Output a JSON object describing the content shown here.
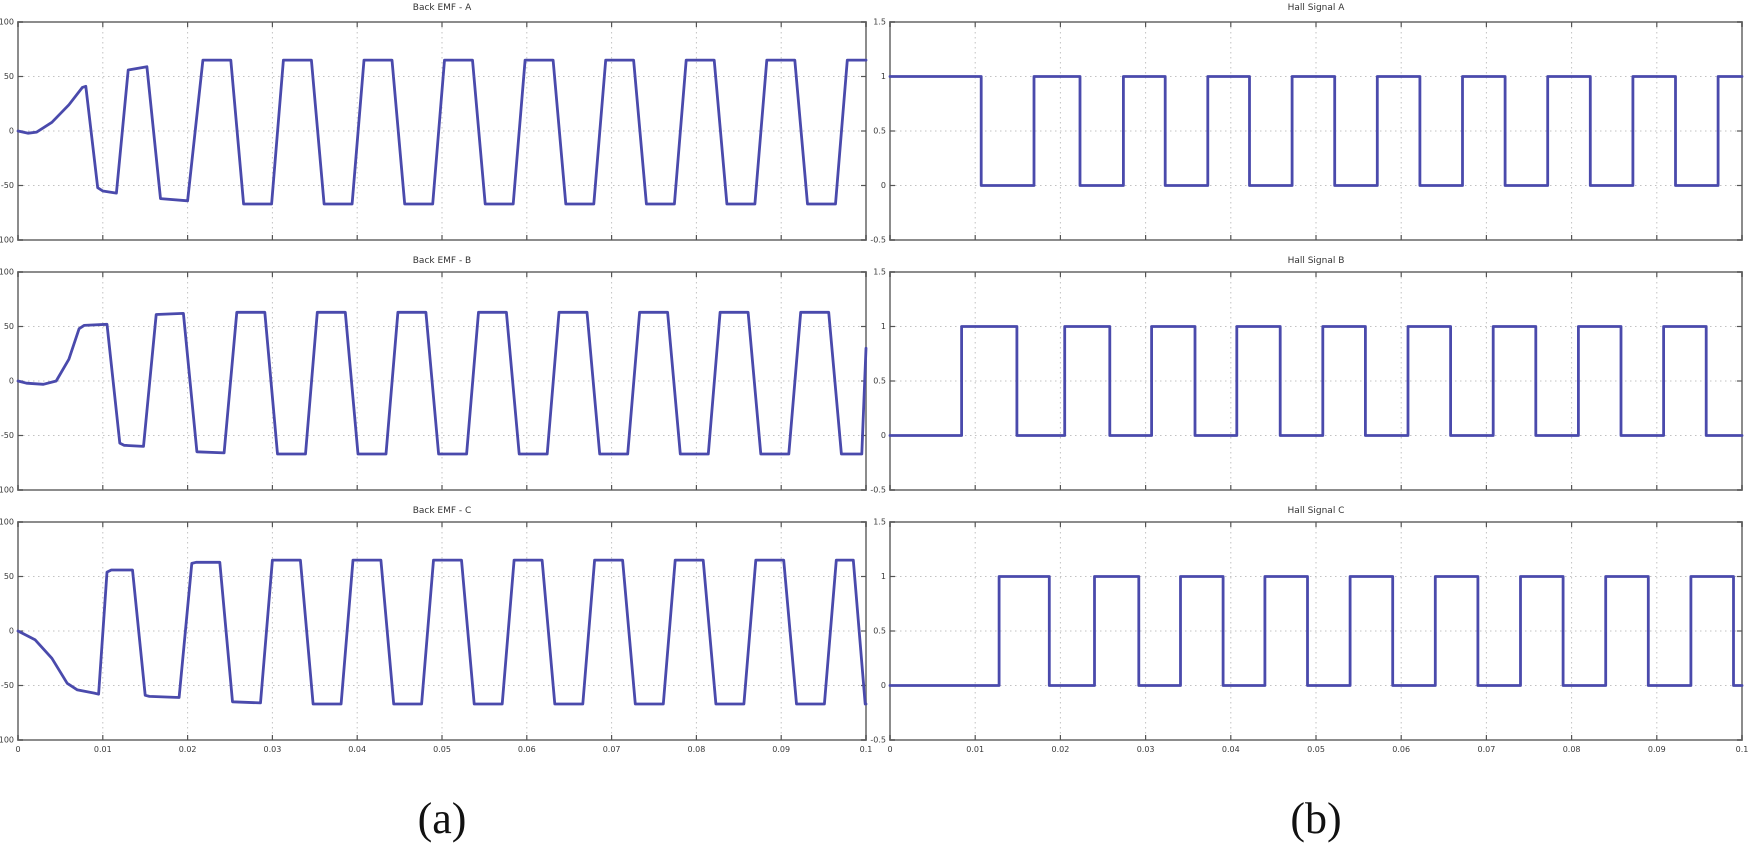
{
  "figure": {
    "panel_a_label": "(a)",
    "panel_b_label": "(b)",
    "line_color": "#4a4aac",
    "axis_color": "#8c8c8c",
    "grid_color": "#c2c2c2",
    "tick_color": "#555555",
    "label_color": "#3a3a3a",
    "background": "#ffffff"
  },
  "chart_data": [
    {
      "id": "back-emf-a",
      "type": "line",
      "title": "Back EMF - A",
      "xlim": [
        0,
        0.1
      ],
      "ylim": [
        -100,
        100
      ],
      "grid": true,
      "xticks": [
        0,
        0.01,
        0.02,
        0.03,
        0.04,
        0.05,
        0.06,
        0.07,
        0.08,
        0.09,
        0.1
      ],
      "yticks": [
        100,
        50,
        0,
        -50,
        -100
      ],
      "ytick_labels": [
        "100",
        "50",
        "0",
        "-50",
        "-100"
      ],
      "points": [
        [
          0,
          0
        ],
        [
          0.0012,
          -2
        ],
        [
          0.0022,
          -1
        ],
        [
          0.004,
          8
        ],
        [
          0.006,
          24
        ],
        [
          0.0076,
          40
        ],
        [
          0.008,
          41
        ],
        [
          0.0094,
          -52
        ],
        [
          0.01,
          -55
        ],
        [
          0.0116,
          -57
        ],
        [
          0.013,
          56
        ],
        [
          0.0152,
          59
        ],
        [
          0.0168,
          -62
        ],
        [
          0.02,
          -64
        ],
        [
          0.0218,
          65
        ],
        [
          0.0251,
          65
        ],
        [
          0.0266,
          -67
        ],
        [
          0.0299,
          -67
        ],
        [
          0.0313,
          65
        ],
        [
          0.0346,
          65
        ],
        [
          0.0361,
          -67
        ],
        [
          0.0394,
          -67
        ],
        [
          0.0408,
          65
        ],
        [
          0.0441,
          65
        ],
        [
          0.0456,
          -67
        ],
        [
          0.0489,
          -67
        ],
        [
          0.0503,
          65
        ],
        [
          0.0536,
          65
        ],
        [
          0.0551,
          -67
        ],
        [
          0.0584,
          -67
        ],
        [
          0.0598,
          65
        ],
        [
          0.0631,
          65
        ],
        [
          0.0646,
          -67
        ],
        [
          0.0679,
          -67
        ],
        [
          0.0693,
          65
        ],
        [
          0.0726,
          65
        ],
        [
          0.0741,
          -67
        ],
        [
          0.0774,
          -67
        ],
        [
          0.0788,
          65
        ],
        [
          0.0821,
          65
        ],
        [
          0.0836,
          -67
        ],
        [
          0.0869,
          -67
        ],
        [
          0.0883,
          65
        ],
        [
          0.0916,
          65
        ],
        [
          0.0931,
          -67
        ],
        [
          0.0964,
          -67
        ],
        [
          0.0978,
          65
        ],
        [
          0.1,
          65
        ]
      ]
    },
    {
      "id": "back-emf-b",
      "type": "line",
      "title": "Back EMF - B",
      "xlim": [
        0,
        0.1
      ],
      "ylim": [
        -100,
        100
      ],
      "grid": true,
      "xticks": [
        0,
        0.01,
        0.02,
        0.03,
        0.04,
        0.05,
        0.06,
        0.07,
        0.08,
        0.09,
        0.1
      ],
      "yticks": [
        100,
        50,
        0,
        -50,
        -100
      ],
      "ytick_labels": [
        "100",
        "50",
        "0",
        "-50",
        "-100"
      ],
      "points": [
        [
          0,
          0
        ],
        [
          0.001,
          -2
        ],
        [
          0.003,
          -3
        ],
        [
          0.0045,
          0
        ],
        [
          0.006,
          20
        ],
        [
          0.0072,
          48
        ],
        [
          0.0078,
          51
        ],
        [
          0.0105,
          52
        ],
        [
          0.012,
          -57
        ],
        [
          0.0125,
          -59
        ],
        [
          0.0148,
          -60
        ],
        [
          0.0163,
          61
        ],
        [
          0.0195,
          62
        ],
        [
          0.0211,
          -65
        ],
        [
          0.0243,
          -66
        ],
        [
          0.0258,
          63
        ],
        [
          0.0291,
          63
        ],
        [
          0.0306,
          -67
        ],
        [
          0.0339,
          -67
        ],
        [
          0.0353,
          63
        ],
        [
          0.0386,
          63
        ],
        [
          0.0401,
          -67
        ],
        [
          0.0434,
          -67
        ],
        [
          0.0448,
          63
        ],
        [
          0.0481,
          63
        ],
        [
          0.0496,
          -67
        ],
        [
          0.0529,
          -67
        ],
        [
          0.0543,
          63
        ],
        [
          0.0576,
          63
        ],
        [
          0.0591,
          -67
        ],
        [
          0.0624,
          -67
        ],
        [
          0.0638,
          63
        ],
        [
          0.0671,
          63
        ],
        [
          0.0686,
          -67
        ],
        [
          0.0719,
          -67
        ],
        [
          0.0733,
          63
        ],
        [
          0.0766,
          63
        ],
        [
          0.0781,
          -67
        ],
        [
          0.0814,
          -67
        ],
        [
          0.0828,
          63
        ],
        [
          0.0861,
          63
        ],
        [
          0.0876,
          -67
        ],
        [
          0.0909,
          -67
        ],
        [
          0.0923,
          63
        ],
        [
          0.0956,
          63
        ],
        [
          0.0971,
          -67
        ],
        [
          0.0995,
          -67
        ],
        [
          0.1,
          30
        ]
      ]
    },
    {
      "id": "back-emf-c",
      "type": "line",
      "title": "Back EMF - C",
      "xlim": [
        0,
        0.1
      ],
      "ylim": [
        -100,
        100
      ],
      "grid": true,
      "xticks": [
        0,
        0.01,
        0.02,
        0.03,
        0.04,
        0.05,
        0.06,
        0.07,
        0.08,
        0.09,
        0.1
      ],
      "yticks": [
        100,
        50,
        0,
        -50,
        -100
      ],
      "ytick_labels": [
        "100",
        "50",
        "0",
        "-50",
        "-100"
      ],
      "xtick_labels": [
        "0",
        "0.01",
        "0.02",
        "0.03",
        "0.04",
        "0.05",
        "0.06",
        "0.07",
        "0.08",
        "0.09",
        "0.1"
      ],
      "points": [
        [
          0,
          0
        ],
        [
          0.002,
          -8
        ],
        [
          0.004,
          -25
        ],
        [
          0.0058,
          -48
        ],
        [
          0.007,
          -54
        ],
        [
          0.009,
          -57
        ],
        [
          0.0095,
          -58
        ],
        [
          0.0105,
          54
        ],
        [
          0.011,
          56
        ],
        [
          0.0135,
          56
        ],
        [
          0.015,
          -59
        ],
        [
          0.0155,
          -60
        ],
        [
          0.019,
          -61
        ],
        [
          0.0205,
          62
        ],
        [
          0.021,
          63
        ],
        [
          0.0238,
          63
        ],
        [
          0.0253,
          -65
        ],
        [
          0.0286,
          -66
        ],
        [
          0.03,
          65
        ],
        [
          0.0333,
          65
        ],
        [
          0.0348,
          -67
        ],
        [
          0.0381,
          -67
        ],
        [
          0.0395,
          65
        ],
        [
          0.0428,
          65
        ],
        [
          0.0443,
          -67
        ],
        [
          0.0476,
          -67
        ],
        [
          0.049,
          65
        ],
        [
          0.0523,
          65
        ],
        [
          0.0538,
          -67
        ],
        [
          0.0571,
          -67
        ],
        [
          0.0585,
          65
        ],
        [
          0.0618,
          65
        ],
        [
          0.0633,
          -67
        ],
        [
          0.0666,
          -67
        ],
        [
          0.068,
          65
        ],
        [
          0.0713,
          65
        ],
        [
          0.0728,
          -67
        ],
        [
          0.0761,
          -67
        ],
        [
          0.0775,
          65
        ],
        [
          0.0808,
          65
        ],
        [
          0.0823,
          -67
        ],
        [
          0.0856,
          -67
        ],
        [
          0.087,
          65
        ],
        [
          0.0903,
          65
        ],
        [
          0.0918,
          -67
        ],
        [
          0.0951,
          -67
        ],
        [
          0.0965,
          65
        ],
        [
          0.0985,
          65
        ],
        [
          0.0999,
          -67
        ],
        [
          0.1,
          -67
        ]
      ]
    },
    {
      "id": "hall-signal-a",
      "type": "line",
      "title": "Hall Signal A",
      "xlim": [
        0,
        0.1
      ],
      "ylim": [
        -0.5,
        1.5
      ],
      "grid": true,
      "xticks": [
        0,
        0.01,
        0.02,
        0.03,
        0.04,
        0.05,
        0.06,
        0.07,
        0.08,
        0.09,
        0.1
      ],
      "yticks": [
        1.5,
        1,
        0.5,
        0,
        -0.5
      ],
      "ytick_labels": [
        "1.5",
        "1",
        "0.5",
        "0",
        "-0.5"
      ],
      "points": [
        [
          0,
          1
        ],
        [
          0.0107,
          1
        ],
        [
          0.0107,
          0
        ],
        [
          0.0169,
          0
        ],
        [
          0.0169,
          1
        ],
        [
          0.0223,
          1
        ],
        [
          0.0223,
          0
        ],
        [
          0.0274,
          0
        ],
        [
          0.0274,
          1
        ],
        [
          0.0323,
          1
        ],
        [
          0.0323,
          0
        ],
        [
          0.0373,
          0
        ],
        [
          0.0373,
          1
        ],
        [
          0.0422,
          1
        ],
        [
          0.0422,
          0
        ],
        [
          0.0472,
          0
        ],
        [
          0.0472,
          1
        ],
        [
          0.0522,
          1
        ],
        [
          0.0522,
          0
        ],
        [
          0.0572,
          0
        ],
        [
          0.0572,
          1
        ],
        [
          0.0622,
          1
        ],
        [
          0.0622,
          0
        ],
        [
          0.0672,
          0
        ],
        [
          0.0672,
          1
        ],
        [
          0.0722,
          1
        ],
        [
          0.0722,
          0
        ],
        [
          0.0772,
          0
        ],
        [
          0.0772,
          1
        ],
        [
          0.0822,
          1
        ],
        [
          0.0822,
          0
        ],
        [
          0.0872,
          0
        ],
        [
          0.0872,
          1
        ],
        [
          0.0922,
          1
        ],
        [
          0.0922,
          0
        ],
        [
          0.0972,
          0
        ],
        [
          0.0972,
          1
        ],
        [
          0.1,
          1
        ]
      ]
    },
    {
      "id": "hall-signal-b",
      "type": "line",
      "title": "Hall Signal B",
      "xlim": [
        0,
        0.1
      ],
      "ylim": [
        -0.5,
        1.5
      ],
      "grid": true,
      "xticks": [
        0,
        0.01,
        0.02,
        0.03,
        0.04,
        0.05,
        0.06,
        0.07,
        0.08,
        0.09,
        0.1
      ],
      "yticks": [
        1.5,
        1,
        0.5,
        0,
        -0.5
      ],
      "ytick_labels": [
        "1.5",
        "1",
        "0.5",
        "0",
        "-0.5"
      ],
      "points": [
        [
          0,
          0
        ],
        [
          0.0084,
          0
        ],
        [
          0.0084,
          1
        ],
        [
          0.0149,
          1
        ],
        [
          0.0149,
          0
        ],
        [
          0.0205,
          0
        ],
        [
          0.0205,
          1
        ],
        [
          0.0258,
          1
        ],
        [
          0.0258,
          0
        ],
        [
          0.0307,
          0
        ],
        [
          0.0307,
          1
        ],
        [
          0.0358,
          1
        ],
        [
          0.0358,
          0
        ],
        [
          0.0407,
          0
        ],
        [
          0.0407,
          1
        ],
        [
          0.0458,
          1
        ],
        [
          0.0458,
          0
        ],
        [
          0.0508,
          0
        ],
        [
          0.0508,
          1
        ],
        [
          0.0558,
          1
        ],
        [
          0.0558,
          0
        ],
        [
          0.0608,
          0
        ],
        [
          0.0608,
          1
        ],
        [
          0.0658,
          1
        ],
        [
          0.0658,
          0
        ],
        [
          0.0708,
          0
        ],
        [
          0.0708,
          1
        ],
        [
          0.0758,
          1
        ],
        [
          0.0758,
          0
        ],
        [
          0.0808,
          0
        ],
        [
          0.0808,
          1
        ],
        [
          0.0858,
          1
        ],
        [
          0.0858,
          0
        ],
        [
          0.0908,
          0
        ],
        [
          0.0908,
          1
        ],
        [
          0.0958,
          1
        ],
        [
          0.0958,
          0
        ],
        [
          0.1,
          0
        ]
      ]
    },
    {
      "id": "hall-signal-c",
      "type": "line",
      "title": "Hall Signal C",
      "xlim": [
        0,
        0.1
      ],
      "ylim": [
        -0.5,
        1.5
      ],
      "grid": true,
      "xticks": [
        0,
        0.01,
        0.02,
        0.03,
        0.04,
        0.05,
        0.06,
        0.07,
        0.08,
        0.09,
        0.1
      ],
      "yticks": [
        1.5,
        1,
        0.5,
        0,
        -0.5
      ],
      "ytick_labels": [
        "1.5",
        "1",
        "0.5",
        "0",
        "-0.5"
      ],
      "xtick_labels": [
        "0",
        "0.01",
        "0.02",
        "0.03",
        "0.04",
        "0.05",
        "0.06",
        "0.07",
        "0.08",
        "0.09",
        "0.1"
      ],
      "points": [
        [
          0,
          0
        ],
        [
          0.0128,
          0
        ],
        [
          0.0128,
          1
        ],
        [
          0.0187,
          1
        ],
        [
          0.0187,
          0
        ],
        [
          0.024,
          0
        ],
        [
          0.024,
          1
        ],
        [
          0.0292,
          1
        ],
        [
          0.0292,
          0
        ],
        [
          0.0341,
          0
        ],
        [
          0.0341,
          1
        ],
        [
          0.0391,
          1
        ],
        [
          0.0391,
          0
        ],
        [
          0.044,
          0
        ],
        [
          0.044,
          1
        ],
        [
          0.049,
          1
        ],
        [
          0.049,
          0
        ],
        [
          0.054,
          0
        ],
        [
          0.054,
          1
        ],
        [
          0.059,
          1
        ],
        [
          0.059,
          0
        ],
        [
          0.064,
          0
        ],
        [
          0.064,
          1
        ],
        [
          0.069,
          1
        ],
        [
          0.069,
          0
        ],
        [
          0.074,
          0
        ],
        [
          0.074,
          1
        ],
        [
          0.079,
          1
        ],
        [
          0.079,
          0
        ],
        [
          0.084,
          0
        ],
        [
          0.084,
          1
        ],
        [
          0.089,
          1
        ],
        [
          0.089,
          0
        ],
        [
          0.094,
          0
        ],
        [
          0.094,
          1
        ],
        [
          0.099,
          1
        ],
        [
          0.099,
          0
        ],
        [
          0.1,
          0
        ]
      ]
    }
  ]
}
